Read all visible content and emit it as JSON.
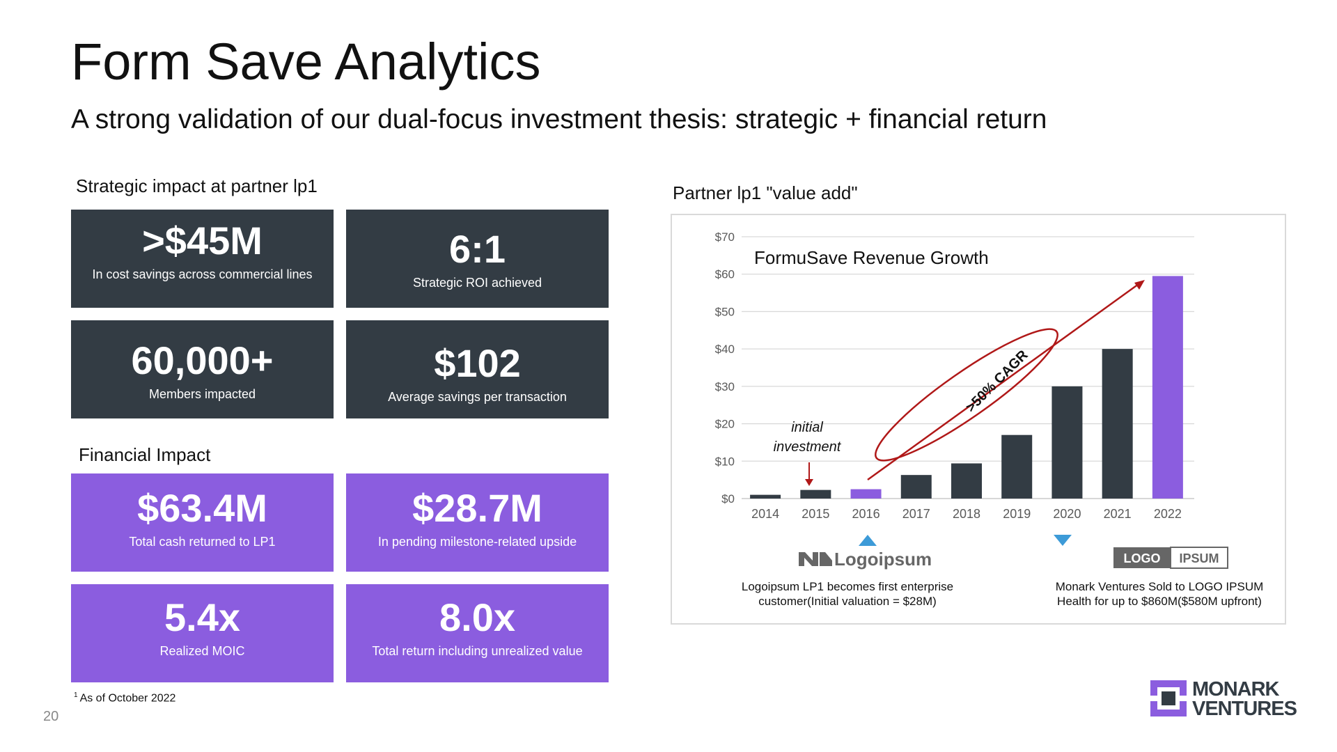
{
  "slide": {
    "title": "Form Save Analytics",
    "subtitle": "A strong validation of our dual-focus investment thesis: strategic + financial return",
    "page_number": "20",
    "footnote_marker": "1",
    "footnote": "As of October 2022"
  },
  "strategic": {
    "heading": "Strategic impact at partner lp1",
    "tiles": [
      {
        "value": ">$45M",
        "label": "In cost savings across commercial lines"
      },
      {
        "value": "6:1",
        "label": "Strategic ROI achieved"
      },
      {
        "value": "60,000+",
        "label": "Members impacted"
      },
      {
        "value": "$102",
        "label": "Average savings per transaction"
      }
    ]
  },
  "financial": {
    "heading": "Financial Impact",
    "tiles": [
      {
        "value": "$63.4M",
        "label": "Total cash returned to LP1"
      },
      {
        "value": "$28.7M",
        "label": "In pending milestone-related upside"
      },
      {
        "value": "5.4x",
        "label": "Realized MOIC"
      },
      {
        "value": "8.0x",
        "label": "Total return including unrealized value"
      }
    ]
  },
  "chart_section": {
    "heading": "Partner lp1 \"value add\"",
    "left_logo_text": "Logoipsum",
    "left_caption_line1": "Logoipsum LP1 becomes first enterprise",
    "left_caption_line2": "customer(Initial valuation = $28M)",
    "right_logo_left": "LOGO",
    "right_logo_right": "IPSUM",
    "right_caption_line1": "Monark Ventures  Sold to LOGO IPSUM",
    "right_caption_line2": "Health for up to $860M($580M upfront)"
  },
  "chart_data": {
    "type": "bar",
    "title": "FormuSave Revenue Growth",
    "categories": [
      "2014",
      "2015",
      "2016",
      "2017",
      "2018",
      "2019",
      "2020",
      "2021",
      "2022"
    ],
    "values": [
      1,
      2.3,
      2.5,
      6.3,
      9.4,
      17,
      30,
      40,
      59.5
    ],
    "highlight_categories": [
      "2016",
      "2022"
    ],
    "ylim": [
      0,
      70
    ],
    "yticks": [
      "$0",
      "$10",
      "$20",
      "$30",
      "$40",
      "$50",
      "$60",
      "$70"
    ],
    "ytick_values": [
      0,
      10,
      20,
      30,
      40,
      50,
      60,
      70
    ],
    "grid": true,
    "annotations": {
      "investment_line1": "initial",
      "investment_line2": "investment",
      "cagr": ">50% CAGR"
    },
    "colors": {
      "bar": "#333c44",
      "highlight": "#8b5ddf",
      "arrow": "#b01818",
      "marker": "#3d9bd8"
    }
  },
  "brand": {
    "line1": "MONARK",
    "line2": "VENTURES",
    "colors": {
      "accent": "#8b5ddf",
      "dark": "#333c44"
    }
  }
}
